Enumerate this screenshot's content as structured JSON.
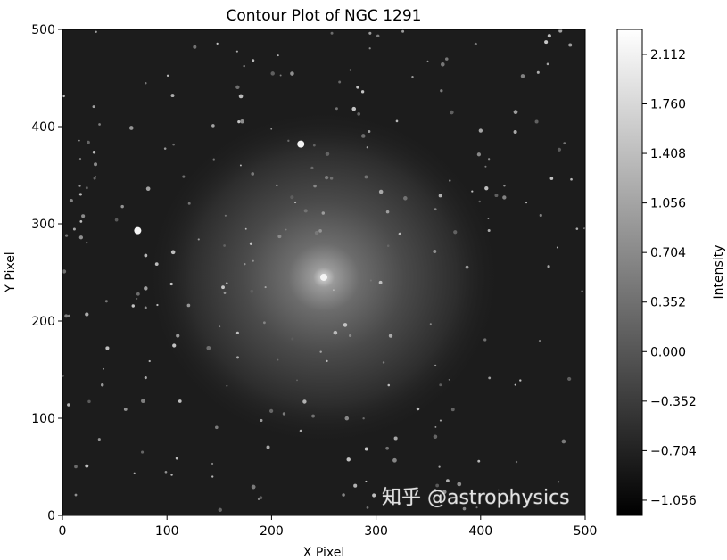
{
  "chart_data": {
    "type": "heatmap",
    "title": "Contour Plot of NGC 1291",
    "xlabel": "X Pixel",
    "ylabel": "Y Pixel",
    "xlim": [
      0,
      500
    ],
    "ylim": [
      0,
      500
    ],
    "xticks": [
      0,
      100,
      200,
      300,
      400,
      500
    ],
    "yticks": [
      0,
      100,
      200,
      300,
      400,
      500
    ],
    "colormap": "gray",
    "colorbar": {
      "label": "Intensity",
      "range": [
        -1.164,
        2.289
      ],
      "ticks": [
        "2.112",
        "1.760",
        "1.408",
        "1.056",
        "0.704",
        "0.352",
        "0.000",
        "−0.352",
        "−0.704",
        "−1.056"
      ],
      "tick_values": [
        2.112,
        1.76,
        1.408,
        1.056,
        0.704,
        0.352,
        0.0,
        -0.352,
        -0.704,
        -1.056
      ]
    },
    "galaxy_center": [
      250,
      245
    ],
    "bright_sources": [
      [
        228,
        382
      ],
      [
        72,
        293
      ],
      [
        250,
        245
      ]
    ],
    "grid": false
  },
  "watermark": "知乎 @astrophysics"
}
